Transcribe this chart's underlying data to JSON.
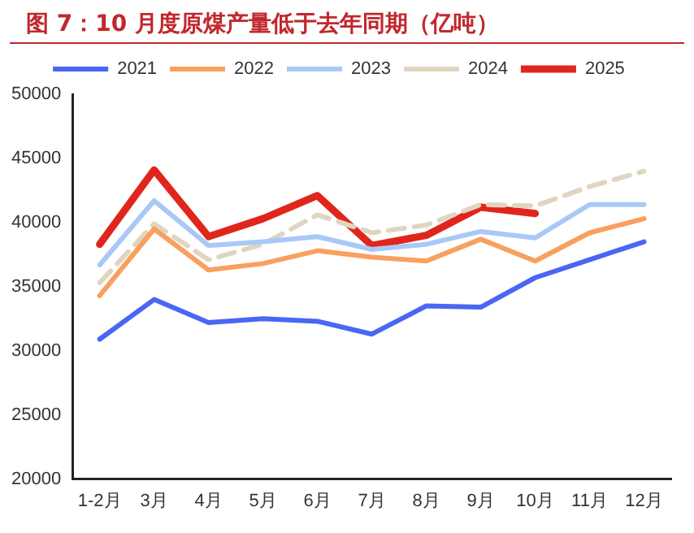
{
  "chart_data": {
    "type": "line",
    "title": "图 7：10 月度原煤产量低于去年同期（亿吨）",
    "categories": [
      "1-2月",
      "3月",
      "4月",
      "5月",
      "6月",
      "7月",
      "8月",
      "9月",
      "10月",
      "11月",
      "12月"
    ],
    "series": [
      {
        "name": "2021",
        "color": "#4a66f5",
        "values": [
          30900,
          34000,
          32200,
          32500,
          32300,
          31300,
          33500,
          33400,
          35700,
          37100,
          38500
        ]
      },
      {
        "name": "2022",
        "color": "#f9a060",
        "values": [
          34300,
          39500,
          36300,
          36800,
          37800,
          37300,
          37000,
          38700,
          37000,
          39200,
          40300
        ]
      },
      {
        "name": "2023",
        "color": "#a9c8f8",
        "values": [
          36700,
          41700,
          38200,
          38500,
          38900,
          37900,
          38300,
          39300,
          38800,
          41400,
          41400
        ]
      },
      {
        "name": "2024",
        "color": "#e0d6c0",
        "line_style": "dashed",
        "values": [
          35300,
          39900,
          37100,
          38300,
          40600,
          39200,
          39800,
          41400,
          41300,
          42800,
          44000
        ]
      },
      {
        "name": "2025",
        "color": "#e0261c",
        "values": [
          38300,
          44100,
          38900,
          40300,
          42100,
          38200,
          39000,
          41200,
          40700,
          null,
          null
        ]
      }
    ],
    "ylim": [
      20000,
      50000
    ],
    "yticks": [
      20000,
      25000,
      30000,
      35000,
      40000,
      45000,
      50000
    ],
    "grid": false,
    "legend": "top",
    "marker": "none"
  }
}
